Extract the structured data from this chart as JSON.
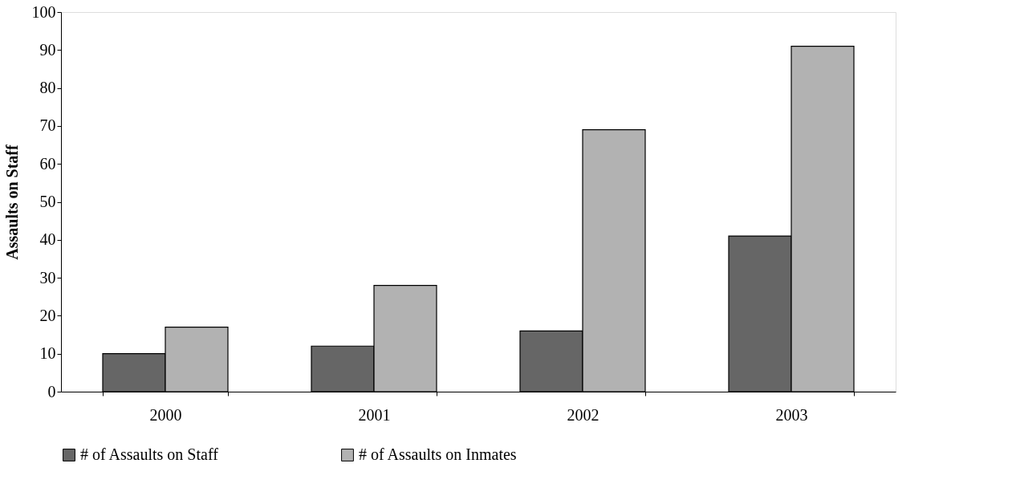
{
  "chart_data": {
    "type": "bar",
    "ylabel": "Assaults on Staff",
    "categories": [
      "2000",
      "2001",
      "2002",
      "2003"
    ],
    "series": [
      {
        "name": "# of Assaults on Staff",
        "color": "#666666",
        "values": [
          10,
          12,
          16,
          41
        ]
      },
      {
        "name": "# of Assaults on Inmates",
        "color": "#b2b2b2",
        "values": [
          17,
          28,
          69,
          91
        ]
      }
    ],
    "ylim": [
      0,
      100
    ],
    "yticks": [
      0,
      10,
      20,
      30,
      40,
      50,
      60,
      70,
      80,
      90,
      100
    ],
    "grid": false,
    "legend": "bottom"
  }
}
